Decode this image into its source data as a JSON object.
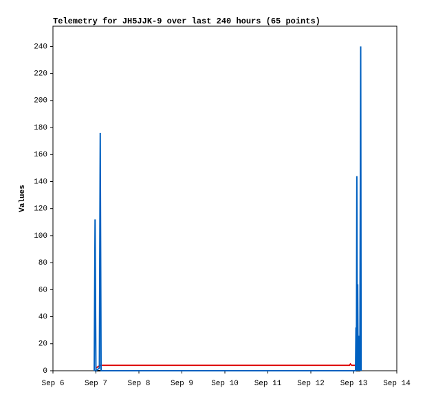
{
  "chart_data": {
    "type": "line",
    "title": "Telemetry for JH5JJK-9 over last 240 hours (65 points)",
    "y_label": "Values",
    "xlim": [
      6,
      14
    ],
    "xticks": [
      {
        "value": 6,
        "label": "Sep 6"
      },
      {
        "value": 7,
        "label": "Sep 7"
      },
      {
        "value": 8,
        "label": "Sep 8"
      },
      {
        "value": 9,
        "label": "Sep 9"
      },
      {
        "value": 10,
        "label": "Sep 10"
      },
      {
        "value": 11,
        "label": "Sep 11"
      },
      {
        "value": 12,
        "label": "Sep 12"
      },
      {
        "value": 13,
        "label": "Sep 13"
      },
      {
        "value": 14,
        "label": "Sep 14"
      }
    ],
    "ylim": [
      0,
      255
    ],
    "yticks": [
      0,
      20,
      40,
      60,
      80,
      100,
      120,
      140,
      160,
      180,
      200,
      220,
      240
    ],
    "grid": false,
    "series": [
      {
        "color": "#000000",
        "x": [
          6.98,
          13.15
        ],
        "values": [
          0,
          0
        ]
      },
      {
        "color": "#dd0000",
        "x": [
          7.0,
          7.1,
          12.9,
          12.92,
          12.95,
          13.04
        ],
        "values": [
          2,
          4,
          4,
          5,
          4,
          4
        ]
      },
      {
        "color": "#0060c0",
        "x": [
          6.96,
          6.98,
          7.0,
          7.08,
          7.1,
          7.12,
          13.04,
          13.05,
          13.06,
          13.07,
          13.08,
          13.09,
          13.1,
          13.11,
          13.12,
          13.13,
          13.14,
          13.16,
          13.17
        ],
        "values": [
          0,
          112,
          0,
          2,
          176,
          0,
          0,
          32,
          0,
          144,
          0,
          64,
          0,
          26,
          0,
          16,
          0,
          240,
          0
        ]
      }
    ]
  }
}
